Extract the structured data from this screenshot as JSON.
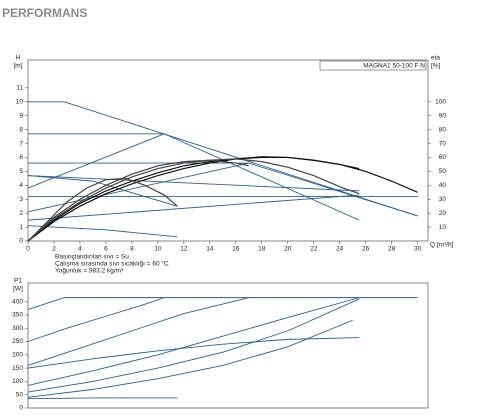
{
  "title": "PERFORMANS",
  "chart_data": [
    {
      "type": "line",
      "ylabel": "H",
      "yunit": "[m]",
      "y2label": "eta",
      "y2unit": "[%]",
      "xlabel": "Q [m³/h]",
      "legend_label": "MAGNA1 50-100 F N",
      "annotations": [
        "Basınçlandırılan sıvı = Su",
        "Çalışma sırasında sıvı sıcaklığı = 60 °C",
        "Yoğunluk = 983.2 kg/m³"
      ],
      "xlim": [
        0,
        30.8
      ],
      "xticks": [
        0,
        2,
        4,
        6,
        8,
        10,
        12,
        14,
        16,
        18,
        20,
        22,
        24,
        26,
        28,
        30
      ],
      "ylim": [
        0,
        13
      ],
      "yticks": [
        0,
        1,
        2,
        3,
        4,
        5,
        6,
        7,
        8,
        9,
        10,
        11
      ],
      "y2lim": [
        0,
        130
      ],
      "y2ticks": [
        10,
        20,
        30,
        40,
        50,
        60,
        70,
        80,
        90,
        100
      ],
      "series": [
        {
          "color": "#2f5d8c",
          "x": [
            0,
            2.8,
            30
          ],
          "values": [
            10,
            10,
            1.8
          ]
        },
        {
          "color": "#2f5d8c",
          "x": [
            0,
            10.5,
            25.5
          ],
          "values": [
            7.7,
            7.7,
            1.5
          ]
        },
        {
          "color": "#2f5d8c",
          "x": [
            0,
            17,
            30
          ],
          "values": [
            5.6,
            5.6,
            1.8
          ]
        },
        {
          "color": "#2f5d8c",
          "x": [
            0,
            10.5
          ],
          "values": [
            3.8,
            7.7
          ]
        },
        {
          "color": "#2f5d8c",
          "x": [
            0,
            17
          ],
          "values": [
            2.1,
            5.6
          ]
        },
        {
          "color": "#2f5d8c",
          "x": [
            0,
            25.5
          ],
          "values": [
            1.5,
            3.3
          ]
        },
        {
          "color": "#2f5d8c",
          "x": [
            0,
            30
          ],
          "values": [
            3.2,
            3.2
          ]
        },
        {
          "color": "#2f5d8c",
          "x": [
            0,
            25.5
          ],
          "values": [
            4.7,
            3.6
          ]
        },
        {
          "color": "#2f5d8c",
          "x": [
            0,
            5,
            11.5
          ],
          "values": [
            4.7,
            4.3,
            2.5
          ]
        },
        {
          "color": "#2f5d8c",
          "x": [
            0,
            6,
            11.5
          ],
          "values": [
            1.1,
            0.8,
            0.3
          ]
        },
        {
          "color": "#111111",
          "axis": "y2",
          "x": [
            0,
            2,
            4,
            6,
            8,
            10,
            12,
            14,
            16,
            18,
            20,
            22,
            24,
            26,
            28,
            30
          ],
          "values": [
            0,
            14,
            25,
            34,
            41,
            47,
            52,
            56,
            59,
            60.5,
            60,
            58,
            55,
            50,
            43,
            35
          ]
        },
        {
          "color": "#111111",
          "axis": "y2",
          "x": [
            0,
            2,
            4,
            6,
            8,
            10,
            12,
            14,
            16,
            18,
            20,
            22,
            24,
            25.5
          ],
          "values": [
            0,
            15,
            27,
            36,
            43,
            49,
            54,
            57,
            59,
            60,
            60,
            58,
            55,
            52
          ]
        },
        {
          "color": "#444444",
          "axis": "y2",
          "x": [
            0,
            2,
            4,
            6,
            8,
            10,
            12,
            14,
            16,
            18,
            20,
            22,
            24,
            25.5
          ],
          "values": [
            0,
            16,
            28,
            38,
            46,
            52,
            56,
            58,
            59,
            57,
            53,
            47,
            39,
            34
          ]
        },
        {
          "color": "#444444",
          "axis": "y2",
          "x": [
            0,
            2,
            4,
            6,
            8,
            10,
            12,
            14,
            16,
            17
          ],
          "values": [
            0,
            17,
            30,
            40,
            48,
            54,
            57,
            58,
            56,
            54
          ]
        },
        {
          "color": "#444444",
          "axis": "y2",
          "x": [
            0,
            1.5,
            3,
            4.5,
            6,
            7.5,
            9,
            10.5,
            11.5
          ],
          "values": [
            0,
            14,
            28,
            38,
            44,
            45,
            40,
            33,
            25
          ]
        }
      ]
    },
    {
      "type": "line",
      "ylabel": "P1",
      "yunit": "[W]",
      "xlim": [
        0,
        30.8
      ],
      "ylim": [
        0,
        470
      ],
      "yticks": [
        0,
        50,
        100,
        150,
        200,
        250,
        300,
        350,
        400
      ],
      "series": [
        {
          "color": "#2f5d8c",
          "x": [
            0,
            2.8,
            30
          ],
          "values": [
            370,
            415,
            415
          ]
        },
        {
          "color": "#2f5d8c",
          "x": [
            0,
            3,
            6,
            9,
            10.5
          ],
          "values": [
            250,
            300,
            345,
            390,
            415
          ]
        },
        {
          "color": "#2f5d8c",
          "x": [
            0,
            4,
            8,
            12,
            17
          ],
          "values": [
            160,
            225,
            290,
            355,
            415
          ]
        },
        {
          "color": "#2f5d8c",
          "x": [
            0,
            5,
            10,
            15,
            20,
            25.5
          ],
          "values": [
            85,
            140,
            200,
            270,
            340,
            415
          ]
        },
        {
          "color": "#2f5d8c",
          "x": [
            0,
            5,
            10,
            15,
            20,
            25.5
          ],
          "values": [
            60,
            100,
            150,
            210,
            290,
            410
          ]
        },
        {
          "color": "#2f5d8c",
          "x": [
            0,
            5,
            10,
            15,
            20,
            25.5
          ],
          "values": [
            150,
            185,
            215,
            240,
            258,
            265
          ]
        },
        {
          "color": "#2f5d8c",
          "x": [
            0,
            5,
            10,
            15,
            20,
            25
          ],
          "values": [
            40,
            70,
            110,
            160,
            230,
            330
          ]
        },
        {
          "color": "#2f5d8c",
          "x": [
            0,
            5,
            11.5
          ],
          "values": [
            35,
            38,
            38
          ]
        }
      ]
    }
  ]
}
